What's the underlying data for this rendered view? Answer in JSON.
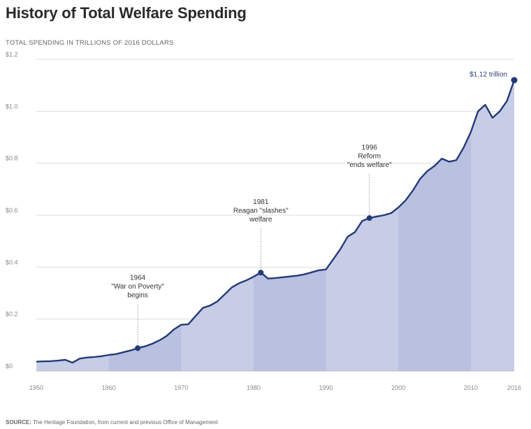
{
  "title": "History of Total Welfare Spending",
  "subtitle": "TOTAL SPENDING IN TRILLIONS OF 2016 DOLLARS",
  "source": {
    "label": "SOURCE:",
    "text": "The Heritage Foundation, from current and previous Office of Management"
  },
  "colors": {
    "line": "#243a78",
    "area": "#c7cde6",
    "band": "#b9c0e0",
    "grid": "#dcdcdc"
  },
  "chart_data": {
    "type": "area",
    "title": "History of Total Welfare Spending",
    "ylabel": "TOTAL SPENDING IN TRILLIONS OF 2016 DOLLARS",
    "xlim": [
      1950,
      2016
    ],
    "ylim": [
      0,
      1.2
    ],
    "ytick_values": [
      0,
      0.2,
      0.4,
      0.6,
      0.8,
      1.0,
      1.2
    ],
    "ytick_labels": [
      "$0",
      "$0.2",
      "$0.4",
      "$0.6",
      "$0.8",
      "$1.0",
      "$1.2"
    ],
    "xtick_values": [
      1950,
      1960,
      1970,
      1980,
      1990,
      2000,
      2010,
      2016
    ],
    "xtick_labels": [
      "1950",
      "1960",
      "1970",
      "1980",
      "1990",
      "2000",
      "2010",
      "2016"
    ],
    "grid": "horizontal",
    "x": [
      1950,
      1951,
      1952,
      1953,
      1954,
      1955,
      1956,
      1957,
      1958,
      1959,
      1960,
      1961,
      1962,
      1963,
      1964,
      1965,
      1966,
      1967,
      1968,
      1969,
      1970,
      1971,
      1972,
      1973,
      1974,
      1975,
      1976,
      1977,
      1978,
      1979,
      1980,
      1981,
      1982,
      1983,
      1984,
      1985,
      1986,
      1987,
      1988,
      1989,
      1990,
      1991,
      1992,
      1993,
      1994,
      1995,
      1996,
      1997,
      1998,
      1999,
      2000,
      2001,
      2002,
      2003,
      2004,
      2005,
      2006,
      2007,
      2008,
      2009,
      2010,
      2011,
      2012,
      2013,
      2014,
      2015,
      2016
    ],
    "y": [
      0.036,
      0.037,
      0.038,
      0.04,
      0.043,
      0.032,
      0.048,
      0.052,
      0.054,
      0.057,
      0.062,
      0.065,
      0.072,
      0.079,
      0.088,
      0.095,
      0.105,
      0.118,
      0.135,
      0.16,
      0.178,
      0.18,
      0.212,
      0.243,
      0.252,
      0.268,
      0.295,
      0.322,
      0.338,
      0.349,
      0.363,
      0.379,
      0.356,
      0.358,
      0.361,
      0.364,
      0.367,
      0.372,
      0.38,
      0.388,
      0.391,
      0.43,
      0.47,
      0.517,
      0.535,
      0.578,
      0.589,
      0.595,
      0.6,
      0.608,
      0.63,
      0.657,
      0.695,
      0.74,
      0.77,
      0.79,
      0.818,
      0.806,
      0.812,
      0.86,
      0.92,
      1.0,
      1.025,
      0.975,
      1.0,
      1.04,
      1.12
    ],
    "series": [
      {
        "name": "",
        "color": "#243a78"
      }
    ],
    "annotations": [
      {
        "x": 1964,
        "y": 0.088,
        "lines": [
          "1964",
          "\"War on Poverty\"",
          "begins"
        ]
      },
      {
        "x": 1981,
        "y": 0.379,
        "lines": [
          "1981",
          "Reagan \"slashes\"",
          "welfare"
        ]
      },
      {
        "x": 1996,
        "y": 0.589,
        "lines": [
          "1996",
          "Reform",
          "\"ends welfare\""
        ]
      }
    ],
    "end_label": {
      "x": 2016,
      "y": 1.12,
      "text": "$1.12 trillion"
    }
  }
}
